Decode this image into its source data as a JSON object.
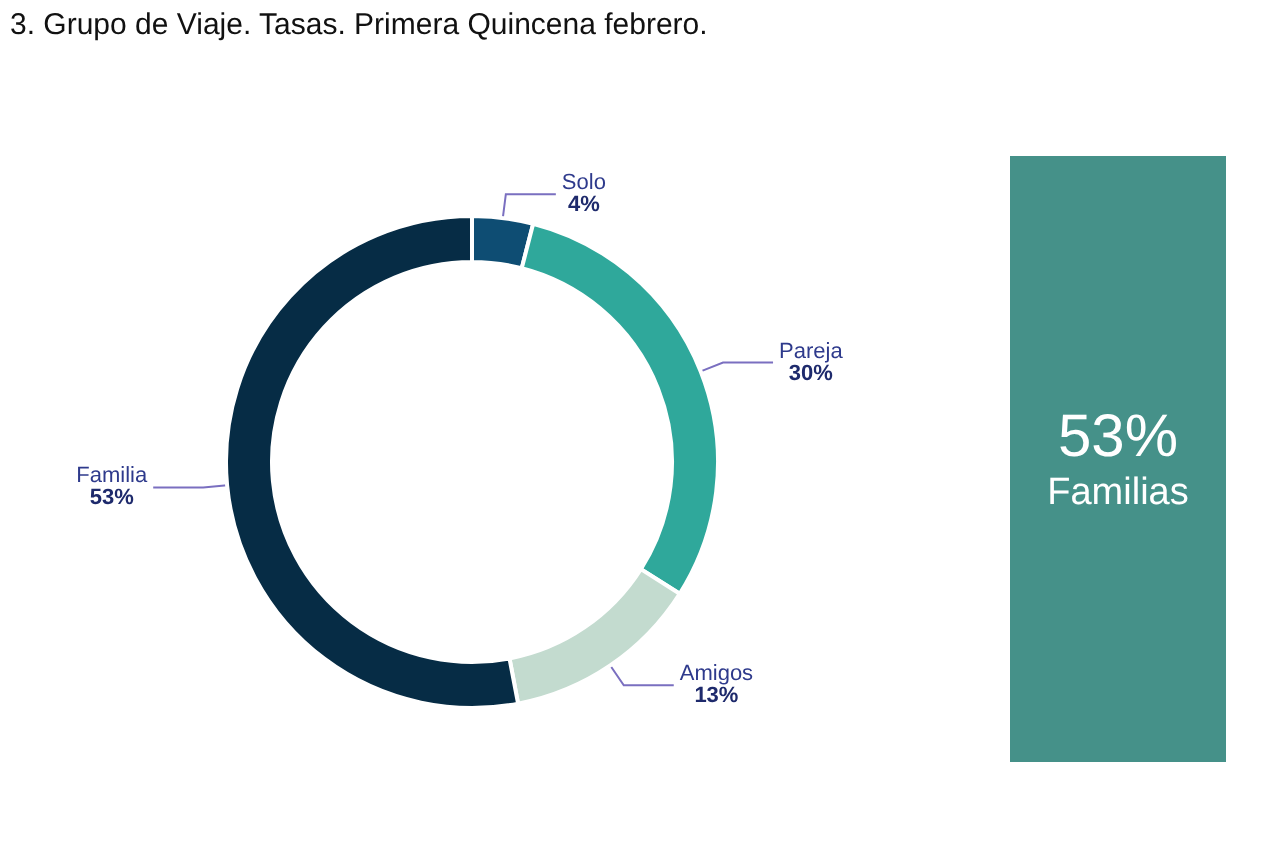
{
  "chart_data": [
    {
      "type": "donut",
      "title": "3. Grupo de Viaje. Tasas. Primera Quincena febrero.",
      "categories": [
        "Solo",
        "Pareja",
        "Amigos",
        "Familia"
      ],
      "values": [
        4,
        30,
        13,
        53
      ],
      "colors": [
        "#0e4d73",
        "#2fa89b",
        "#c3dbcf",
        "#062c45"
      ],
      "value_labels": [
        "4%",
        "30%",
        "13%",
        "53%"
      ],
      "legend": false
    },
    {
      "type": "other",
      "color": "#459189",
      "annotations": [
        "53%",
        "Familias"
      ]
    }
  ]
}
